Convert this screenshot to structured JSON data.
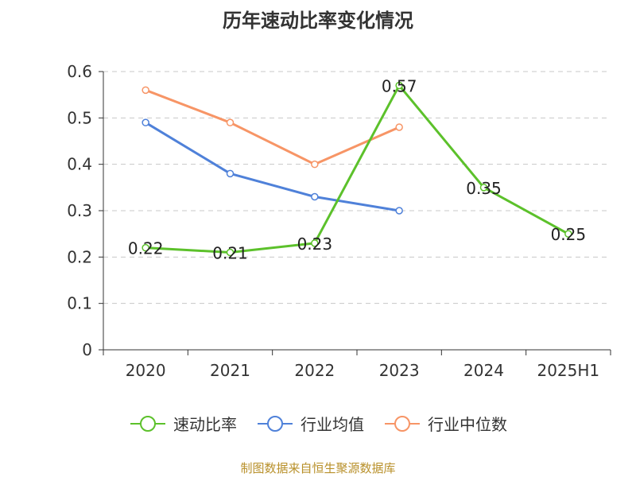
{
  "chart_data": {
    "type": "line",
    "title": "历年速动比率变化情况",
    "categories": [
      "2020",
      "2021",
      "2022",
      "2023",
      "2024",
      "2025H1"
    ],
    "ylim": [
      0,
      0.6
    ],
    "yticks": [
      "0",
      "0.1",
      "0.2",
      "0.3",
      "0.4",
      "0.5",
      "0.6"
    ],
    "grid": true,
    "legend_position": "bottom",
    "series": [
      {
        "name": "速动比率",
        "color": "#5cc12b",
        "values": [
          0.22,
          0.21,
          0.23,
          0.57,
          0.35,
          0.25
        ],
        "data_labels": [
          "0.22",
          "0.21",
          "0.23",
          "0.57",
          "0.35",
          "0.25"
        ]
      },
      {
        "name": "行业均值",
        "color": "#4f81d9",
        "values": [
          0.49,
          0.38,
          0.33,
          0.3,
          null,
          null
        ]
      },
      {
        "name": "行业中位数",
        "color": "#f79566",
        "values": [
          0.56,
          0.49,
          0.4,
          0.48,
          null,
          null
        ]
      }
    ]
  },
  "source": "制图数据来自恒生聚源数据库"
}
